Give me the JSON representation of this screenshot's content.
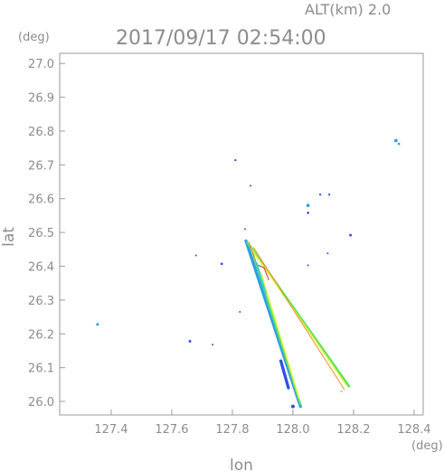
{
  "header": {
    "altitude": "ALT(km)  2.0",
    "timestamp": "2017/09/17 02:54:00"
  },
  "chart_data": {
    "type": "scatter",
    "xlabel": "lon",
    "ylabel": "lat",
    "x_unit": "(deg)",
    "y_unit": "(deg)",
    "xlim": [
      127.23,
      128.43
    ],
    "ylim": [
      25.96,
      27.03
    ],
    "x_ticks": [
      127.4,
      127.6,
      127.8,
      128.0,
      128.2,
      128.4
    ],
    "x_tick_labels": [
      "127.4",
      "127.6",
      "127.8",
      "128.0",
      "128.2",
      "128.4"
    ],
    "y_ticks": [
      26.0,
      26.1,
      26.2,
      26.3,
      26.4,
      26.5,
      26.6,
      26.7,
      26.8,
      26.9,
      27.0
    ],
    "y_tick_labels": [
      "26.0",
      "26.1",
      "26.2",
      "26.3",
      "26.4",
      "26.5",
      "26.6",
      "26.7",
      "26.8",
      "26.9",
      "27.0"
    ],
    "grid": false,
    "colors": {
      "blue": "#3050e8",
      "lightblue": "#2f9ee8",
      "cyan": "#36d2c8",
      "green": "#5ae65a",
      "yellow": "#e6f03c",
      "orange": "#f08c28",
      "red": "#e82828"
    },
    "echo_blobs": [
      {
        "lon": 127.355,
        "lat": 26.228,
        "r": 0.0045,
        "color": "lightblue"
      },
      {
        "lon": 127.66,
        "lat": 26.178,
        "r": 0.0045,
        "color": "blue"
      },
      {
        "lon": 127.735,
        "lat": 26.168,
        "r": 0.003,
        "color": "blue"
      },
      {
        "lon": 127.68,
        "lat": 26.432,
        "r": 0.002,
        "color": "blue"
      },
      {
        "lon": 127.765,
        "lat": 26.407,
        "r": 0.004,
        "color": "blue"
      },
      {
        "lon": 127.81,
        "lat": 26.714,
        "r": 0.0035,
        "color": "blue"
      },
      {
        "lon": 127.86,
        "lat": 26.638,
        "r": 0.002,
        "color": "blue"
      },
      {
        "lon": 127.842,
        "lat": 26.51,
        "r": 0.0025,
        "color": "blue"
      },
      {
        "lon": 128.05,
        "lat": 26.58,
        "r": 0.0055,
        "color": "lightblue"
      },
      {
        "lon": 128.05,
        "lat": 26.558,
        "r": 0.004,
        "color": "blue"
      },
      {
        "lon": 128.09,
        "lat": 26.612,
        "r": 0.0035,
        "color": "blue"
      },
      {
        "lon": 128.12,
        "lat": 26.612,
        "r": 0.0035,
        "color": "blue"
      },
      {
        "lon": 128.19,
        "lat": 26.492,
        "r": 0.0045,
        "color": "blue"
      },
      {
        "lon": 128.34,
        "lat": 26.772,
        "r": 0.0055,
        "color": "lightblue"
      },
      {
        "lon": 128.35,
        "lat": 26.762,
        "r": 0.004,
        "color": "lightblue"
      },
      {
        "lon": 128.115,
        "lat": 26.438,
        "r": 0.002,
        "color": "blue"
      },
      {
        "lon": 128.05,
        "lat": 26.403,
        "r": 0.002,
        "color": "blue"
      },
      {
        "lon": 127.825,
        "lat": 26.265,
        "r": 0.0025,
        "color": "blue"
      },
      {
        "lon": 128.0,
        "lat": 25.985,
        "r": 0.006,
        "color": "blue"
      },
      {
        "lon": 128.16,
        "lat": 26.03,
        "r": 0.002,
        "color": "green"
      }
    ],
    "beam_streaks": [
      {
        "from": [
          127.845,
          26.475
        ],
        "to": [
          128.025,
          25.985
        ],
        "width": 0.01,
        "color": "lightblue"
      },
      {
        "from": [
          127.86,
          26.46
        ],
        "to": [
          128.025,
          25.99
        ],
        "width": 0.006,
        "color": "green"
      },
      {
        "from": [
          127.895,
          26.38
        ],
        "to": [
          128.02,
          26.01
        ],
        "width": 0.004,
        "color": "yellow"
      },
      {
        "from": [
          127.85,
          26.47
        ],
        "to": [
          128.185,
          26.045
        ],
        "width": 0.008,
        "color": "green"
      },
      {
        "from": [
          127.86,
          26.455
        ],
        "to": [
          128.175,
          26.05
        ],
        "width": 0.004,
        "color": "yellow"
      },
      {
        "from": [
          127.87,
          26.455
        ],
        "to": [
          128.17,
          26.035
        ],
        "width": 0.002,
        "color": "orange"
      },
      {
        "from": [
          127.855,
          26.47
        ],
        "to": [
          127.88,
          26.405
        ],
        "width": 0.003,
        "color": "orange"
      },
      {
        "from": [
          127.88,
          26.405
        ],
        "to": [
          127.905,
          26.395
        ],
        "width": 0.003,
        "color": "red"
      },
      {
        "from": [
          127.905,
          26.395
        ],
        "to": [
          127.92,
          26.36
        ],
        "width": 0.003,
        "color": "red"
      },
      {
        "from": [
          127.88,
          26.41
        ],
        "to": [
          127.91,
          26.32
        ],
        "width": 0.006,
        "color": "cyan"
      },
      {
        "from": [
          127.96,
          26.12
        ],
        "to": [
          127.985,
          26.04
        ],
        "width": 0.01,
        "color": "blue"
      }
    ]
  }
}
